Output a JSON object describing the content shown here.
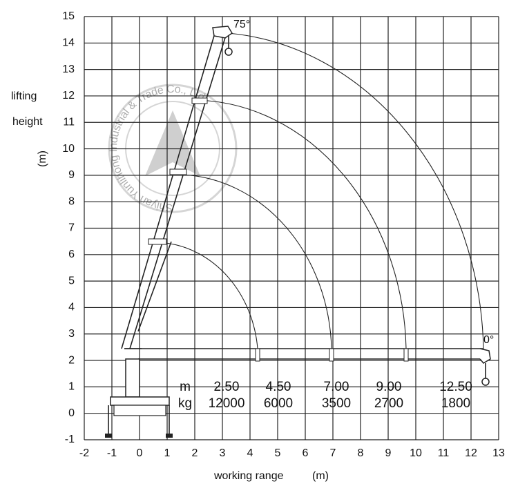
{
  "chart_data": {
    "type": "load-chart",
    "xlim": [
      -2,
      13
    ],
    "ylim": [
      -1,
      15
    ],
    "xticks": [
      -2,
      -1,
      0,
      1,
      2,
      3,
      4,
      5,
      6,
      7,
      8,
      9,
      10,
      11,
      12,
      13
    ],
    "yticks": [
      -1,
      0,
      1,
      2,
      3,
      4,
      5,
      6,
      7,
      8,
      9,
      10,
      11,
      12,
      13,
      14,
      15
    ],
    "ylabel": [
      "lifting",
      "height",
      "(m)"
    ],
    "xlabel": [
      "working range",
      "(m)"
    ],
    "annotations": [
      "75°",
      "0°"
    ],
    "watermark": "Shiyan Yunlihong Industrial & Trade Co., Ltd.",
    "table": {
      "row_labels": [
        "m",
        "kg"
      ],
      "radius": [
        "2.50",
        "4.50",
        "7.00",
        "9.00",
        "12.50"
      ],
      "load": [
        "12000",
        "6000",
        "3500",
        "2700",
        "1800"
      ]
    }
  }
}
